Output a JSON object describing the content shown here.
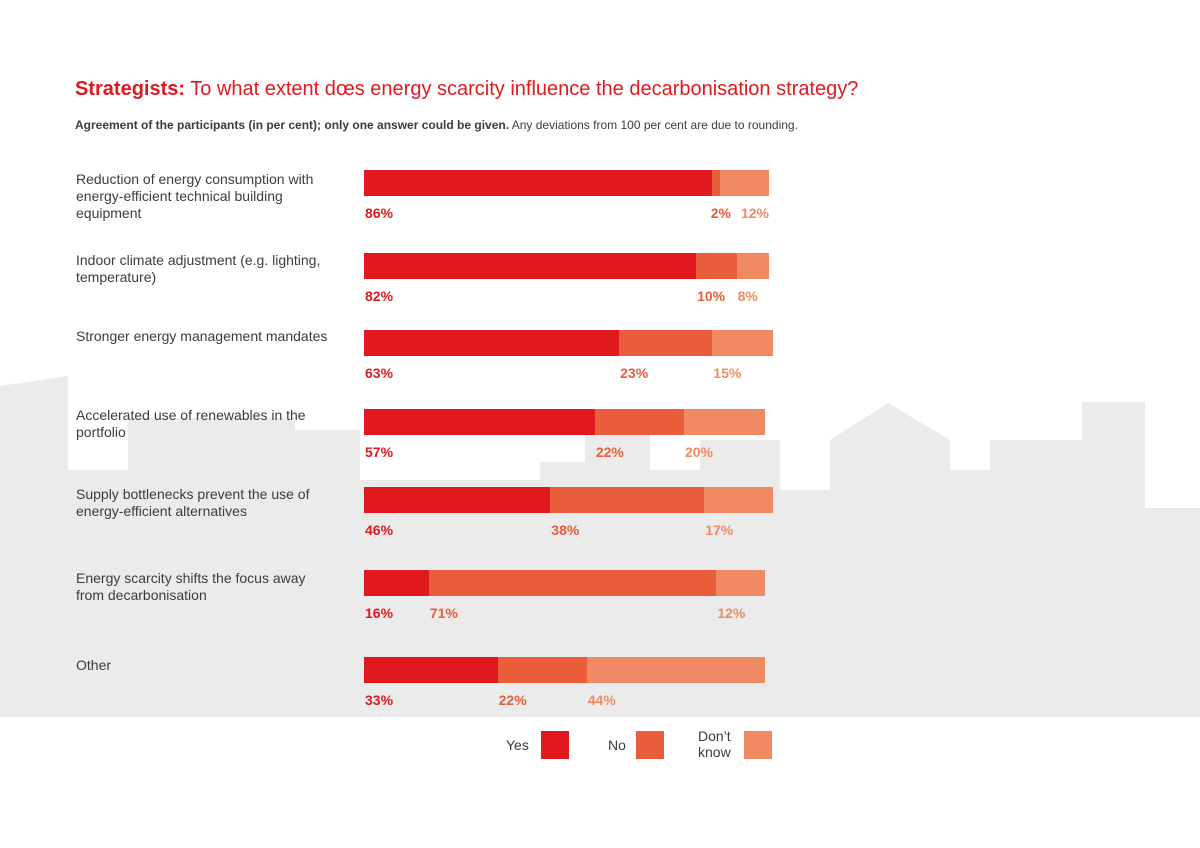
{
  "header": {
    "title_strong": "Strategists:",
    "title_rest": " To what extent dœs energy scarcity influence the decarbonisation strategy?",
    "subtitle_strong": "Agreement of the participants (in per cent); only one answer could be given.",
    "subtitle_rest": " Any deviations from 100 per cent are due to rounding."
  },
  "colors": {
    "yes": "#e0191f",
    "no": "#e95d3a",
    "dont_know": "#ef8a64",
    "skyline": "#ebebeb"
  },
  "legend": [
    {
      "label": "Yes",
      "color": "#e0191f"
    },
    {
      "label": "No",
      "color": "#e95d3a"
    },
    {
      "label": "Don’t know",
      "color": "#ef8a64"
    }
  ],
  "chart_data": {
    "type": "bar",
    "orientation": "horizontal",
    "stacked": true,
    "categories": [
      "Reduction of energy consumption with energy-efficient technical building equipment",
      "Indoor climate adjustment (e.g. lighting, temperature)",
      "Stronger energy management mandates",
      "Accelerated use of renewables in the portfolio",
      "Supply bottlenecks prevent the use of energy-efficient alternatives",
      "Energy scarcity shifts the focus away from decarbonisation",
      "Other"
    ],
    "series": [
      {
        "name": "Yes",
        "values": [
          86,
          82,
          63,
          57,
          46,
          16,
          33
        ],
        "labels": [
          "86%",
          "82%",
          "63%",
          "57%",
          "46%",
          "16%",
          "33%"
        ]
      },
      {
        "name": "No",
        "values": [
          2,
          10,
          23,
          22,
          38,
          71,
          22
        ],
        "labels": [
          "2%",
          "10%",
          "23%",
          "22%",
          "38%",
          "71%",
          "22%"
        ]
      },
      {
        "name": "Don’t know",
        "values": [
          12,
          8,
          15,
          20,
          17,
          12,
          44
        ],
        "labels": [
          "12%",
          "8%",
          "15%",
          "20%",
          "17%",
          "12%",
          "44%"
        ]
      }
    ],
    "unit": "%",
    "xlim": [
      0,
      100
    ],
    "legend_position": "bottom",
    "grid": false
  }
}
